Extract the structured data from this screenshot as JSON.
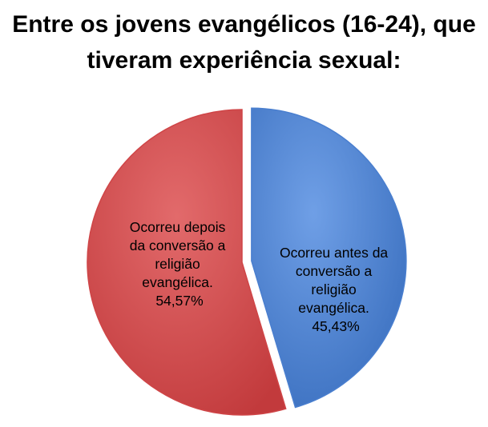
{
  "chart_data": {
    "type": "pie",
    "title": {
      "line1": "Entre os jovens evangélicos (16-24), que",
      "line2": "tiveram experiência sexual:"
    },
    "slices": [
      {
        "label_lines": [
          "Ocorreu antes da",
          "conversão a",
          "religião",
          "evangélica."
        ],
        "value": 45.43,
        "value_label": "45,43%",
        "color": "#4a7fcf",
        "exploded": true
      },
      {
        "label_lines": [
          "Ocorreu depois",
          "da conversão a",
          "religião",
          "evangélica."
        ],
        "value": 54.57,
        "value_label": "54,57%",
        "color": "#cf4547",
        "exploded": false
      }
    ]
  }
}
